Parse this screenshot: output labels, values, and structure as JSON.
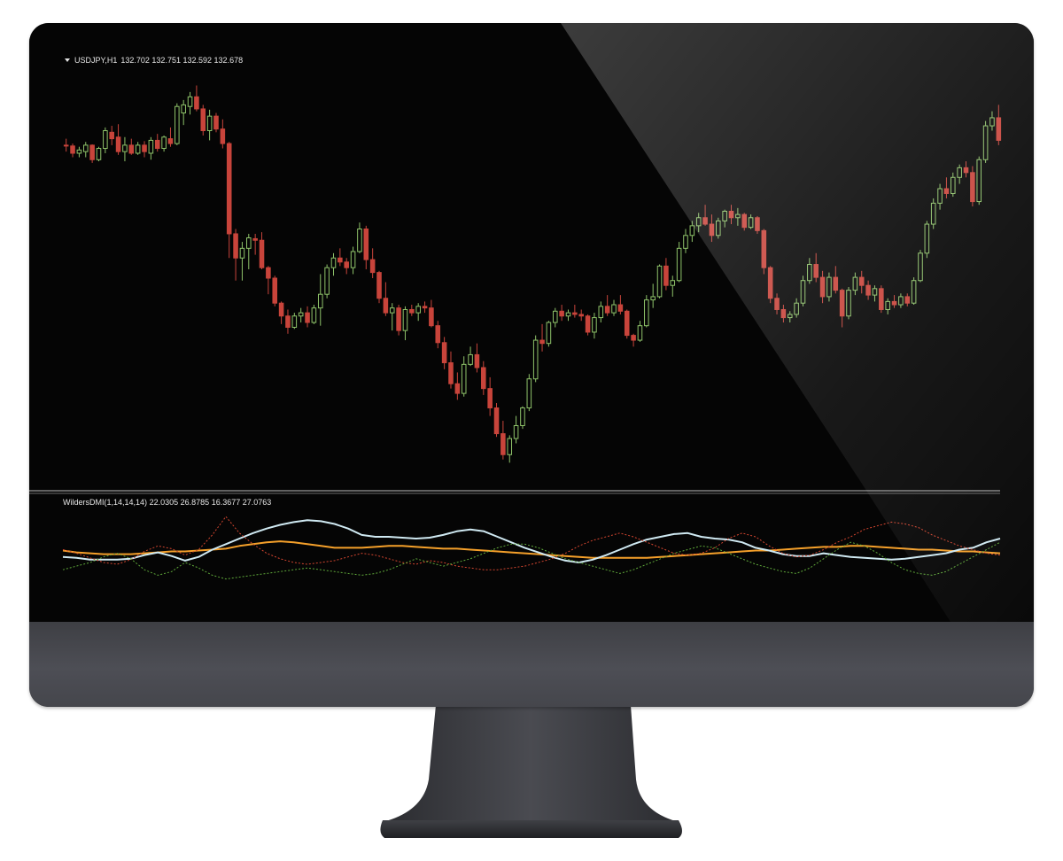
{
  "header": {
    "symbol": "USDJPY,H1",
    "open": "132.702",
    "high": "132.751",
    "low": "132.592",
    "close": "132.678"
  },
  "indicator": {
    "label": "WildersDMI(1,14,14,14)",
    "v1": "22.0305",
    "v2": "26.8785",
    "v3": "16.3677",
    "v4": "27.0763"
  },
  "colors": {
    "background": "#050505",
    "bull_candle": "#8fc36a",
    "bear_candle": "#c8443b",
    "adx_line": "#f5a02a",
    "adxr_line": "#cfe9f2",
    "plus_di": "#5fa83a",
    "minus_di": "#d2452f",
    "separator": "#bfbfbf"
  },
  "chart_data": [
    {
      "type": "candlestick",
      "title": "USDJPY,H1",
      "ohlc": [
        [
          132.7,
          132.78,
          132.62,
          132.69
        ],
        [
          132.69,
          132.72,
          132.55,
          132.6
        ],
        [
          132.6,
          132.68,
          132.55,
          132.64
        ],
        [
          132.62,
          132.74,
          132.55,
          132.7
        ],
        [
          132.7,
          132.71,
          132.48,
          132.52
        ],
        [
          132.52,
          132.68,
          132.5,
          132.66
        ],
        [
          132.66,
          132.92,
          132.6,
          132.88
        ],
        [
          132.86,
          132.94,
          132.7,
          132.78
        ],
        [
          132.8,
          132.96,
          132.58,
          132.62
        ],
        [
          132.62,
          132.8,
          132.5,
          132.7
        ],
        [
          132.7,
          132.78,
          132.58,
          132.6
        ],
        [
          132.6,
          132.74,
          132.58,
          132.7
        ],
        [
          132.7,
          132.75,
          132.55,
          132.62
        ],
        [
          132.6,
          132.8,
          132.52,
          132.76
        ],
        [
          132.76,
          132.84,
          132.62,
          132.66
        ],
        [
          132.66,
          132.82,
          132.62,
          132.8
        ],
        [
          132.78,
          132.92,
          132.68,
          132.72
        ],
        [
          132.72,
          133.22,
          132.7,
          133.18
        ],
        [
          133.1,
          133.26,
          132.95,
          133.2
        ],
        [
          133.18,
          133.36,
          133.08,
          133.3
        ],
        [
          133.3,
          133.44,
          133.12,
          133.15
        ],
        [
          133.15,
          133.2,
          132.82,
          132.88
        ],
        [
          132.88,
          133.14,
          132.76,
          133.06
        ],
        [
          133.06,
          133.1,
          132.86,
          132.9
        ],
        [
          132.9,
          133.02,
          132.66,
          132.72
        ],
        [
          132.72,
          132.74,
          131.3,
          131.6
        ],
        [
          131.6,
          131.66,
          131.02,
          131.3
        ],
        [
          131.3,
          131.5,
          131.02,
          131.42
        ],
        [
          131.42,
          131.6,
          131.16,
          131.55
        ],
        [
          131.54,
          131.6,
          131.34,
          131.52
        ],
        [
          131.52,
          131.62,
          131.16,
          131.18
        ],
        [
          131.18,
          131.2,
          130.85,
          131.05
        ],
        [
          131.05,
          131.08,
          130.7,
          130.74
        ],
        [
          130.74,
          130.76,
          130.48,
          130.58
        ],
        [
          130.58,
          130.66,
          130.36,
          130.44
        ],
        [
          130.44,
          130.62,
          130.42,
          130.58
        ],
        [
          130.58,
          130.68,
          130.5,
          130.62
        ],
        [
          130.62,
          130.7,
          130.44,
          130.5
        ],
        [
          130.5,
          130.72,
          130.48,
          130.68
        ],
        [
          130.68,
          131.1,
          130.46,
          130.85
        ],
        [
          130.85,
          131.22,
          130.8,
          131.18
        ],
        [
          131.18,
          131.36,
          131.08,
          131.3
        ],
        [
          131.3,
          131.42,
          131.2,
          131.25
        ],
        [
          131.25,
          131.3,
          131.1,
          131.18
        ],
        [
          131.18,
          131.44,
          131.1,
          131.38
        ],
        [
          131.38,
          131.74,
          131.36,
          131.66
        ],
        [
          131.66,
          131.7,
          131.16,
          131.28
        ],
        [
          131.28,
          131.42,
          131.05,
          131.12
        ],
        [
          131.12,
          131.14,
          130.74,
          130.8
        ],
        [
          130.8,
          131.0,
          130.58,
          130.62
        ],
        [
          130.62,
          130.74,
          130.4,
          130.68
        ],
        [
          130.68,
          130.72,
          130.34,
          130.4
        ],
        [
          130.4,
          130.7,
          130.28,
          130.66
        ],
        [
          130.66,
          130.72,
          130.58,
          130.62
        ],
        [
          130.62,
          130.74,
          130.52,
          130.7
        ],
        [
          130.7,
          130.76,
          130.62,
          130.68
        ],
        [
          130.68,
          130.78,
          130.44,
          130.46
        ],
        [
          130.46,
          130.52,
          130.18,
          130.25
        ],
        [
          130.25,
          130.32,
          129.92,
          130.0
        ],
        [
          130.0,
          130.14,
          129.68,
          129.74
        ],
        [
          129.74,
          129.88,
          129.54,
          129.62
        ],
        [
          129.62,
          130.08,
          129.58,
          129.98
        ],
        [
          129.98,
          130.2,
          129.96,
          130.1
        ],
        [
          130.1,
          130.24,
          129.88,
          129.94
        ],
        [
          129.94,
          130.02,
          129.6,
          129.68
        ],
        [
          129.68,
          129.82,
          129.34,
          129.44
        ],
        [
          129.44,
          129.5,
          129.08,
          129.12
        ],
        [
          129.12,
          129.28,
          128.8,
          128.86
        ],
        [
          128.86,
          129.1,
          128.76,
          129.06
        ],
        [
          129.06,
          129.34,
          129.0,
          129.22
        ],
        [
          129.22,
          129.46,
          129.18,
          129.44
        ],
        [
          129.44,
          129.86,
          129.4,
          129.8
        ],
        [
          129.8,
          130.34,
          129.76,
          130.28
        ],
        [
          130.28,
          130.48,
          130.14,
          130.24
        ],
        [
          130.24,
          130.52,
          130.2,
          130.5
        ],
        [
          130.5,
          130.68,
          130.44,
          130.64
        ],
        [
          130.64,
          130.72,
          130.52,
          130.58
        ],
        [
          130.58,
          130.66,
          130.52,
          130.62
        ],
        [
          130.62,
          130.72,
          130.56,
          130.6
        ],
        [
          130.6,
          130.66,
          130.52,
          130.58
        ],
        [
          130.58,
          130.6,
          130.34,
          130.38
        ],
        [
          130.38,
          130.62,
          130.3,
          130.56
        ],
        [
          130.56,
          130.76,
          130.5,
          130.7
        ],
        [
          130.7,
          130.84,
          130.58,
          130.62
        ],
        [
          130.62,
          130.78,
          130.58,
          130.72
        ],
        [
          130.72,
          130.84,
          130.6,
          130.64
        ],
        [
          130.64,
          130.66,
          130.3,
          130.34
        ],
        [
          130.34,
          130.36,
          130.2,
          130.28
        ],
        [
          130.28,
          130.52,
          130.26,
          130.46
        ],
        [
          130.46,
          130.84,
          130.44,
          130.78
        ],
        [
          130.78,
          130.98,
          130.68,
          130.82
        ],
        [
          130.82,
          131.22,
          130.8,
          131.2
        ],
        [
          131.2,
          131.3,
          130.9,
          130.96
        ],
        [
          130.96,
          131.08,
          130.82,
          131.02
        ],
        [
          131.02,
          131.5,
          131.0,
          131.42
        ],
        [
          131.42,
          131.66,
          131.36,
          131.58
        ],
        [
          131.58,
          131.76,
          131.5,
          131.7
        ],
        [
          131.7,
          131.86,
          131.62,
          131.8
        ],
        [
          131.8,
          131.96,
          131.7,
          131.72
        ],
        [
          131.72,
          131.84,
          131.5,
          131.58
        ],
        [
          131.58,
          131.8,
          131.54,
          131.76
        ],
        [
          131.76,
          131.9,
          131.68,
          131.88
        ],
        [
          131.88,
          131.96,
          131.72,
          131.8
        ],
        [
          131.8,
          131.92,
          131.7,
          131.84
        ],
        [
          131.84,
          131.86,
          131.64,
          131.68
        ],
        [
          131.68,
          131.84,
          131.66,
          131.8
        ],
        [
          131.8,
          131.82,
          131.6,
          131.64
        ],
        [
          131.64,
          131.66,
          131.1,
          131.18
        ],
        [
          131.18,
          131.2,
          130.74,
          130.8
        ],
        [
          130.8,
          130.86,
          130.6,
          130.66
        ],
        [
          130.66,
          130.72,
          130.5,
          130.56
        ],
        [
          130.56,
          130.64,
          130.5,
          130.6
        ],
        [
          130.6,
          130.8,
          130.56,
          130.74
        ],
        [
          130.74,
          131.08,
          130.7,
          131.02
        ],
        [
          131.02,
          131.3,
          130.98,
          131.22
        ],
        [
          131.22,
          131.36,
          131.0,
          131.06
        ],
        [
          131.06,
          131.14,
          130.74,
          130.82
        ],
        [
          130.82,
          131.12,
          130.76,
          131.06
        ],
        [
          131.06,
          131.2,
          130.86,
          130.9
        ],
        [
          130.9,
          130.92,
          130.44,
          130.58
        ],
        [
          130.58,
          130.94,
          130.54,
          130.9
        ],
        [
          130.9,
          131.12,
          130.84,
          131.06
        ],
        [
          131.06,
          131.14,
          130.86,
          130.96
        ],
        [
          130.96,
          131.02,
          130.78,
          130.84
        ],
        [
          130.84,
          130.96,
          130.76,
          130.92
        ],
        [
          130.92,
          130.96,
          130.62,
          130.66
        ],
        [
          130.66,
          130.8,
          130.6,
          130.76
        ],
        [
          130.76,
          130.84,
          130.68,
          130.72
        ],
        [
          130.72,
          130.86,
          130.68,
          130.82
        ],
        [
          130.82,
          130.86,
          130.7,
          130.74
        ],
        [
          130.74,
          131.06,
          130.72,
          131.02
        ],
        [
          131.02,
          131.4,
          131.0,
          131.36
        ],
        [
          131.36,
          131.76,
          131.3,
          131.72
        ],
        [
          131.72,
          132.04,
          131.66,
          131.98
        ],
        [
          131.98,
          132.22,
          131.9,
          132.16
        ],
        [
          132.16,
          132.3,
          132.04,
          132.1
        ],
        [
          132.1,
          132.36,
          132.06,
          132.3
        ],
        [
          132.3,
          132.46,
          132.22,
          132.42
        ],
        [
          132.42,
          132.5,
          132.3,
          132.36
        ],
        [
          132.36,
          132.44,
          131.94,
          132.0
        ],
        [
          132.0,
          132.56,
          131.96,
          132.52
        ],
        [
          132.52,
          133.0,
          132.48,
          132.94
        ],
        [
          132.94,
          133.12,
          132.88,
          133.04
        ],
        [
          133.04,
          133.2,
          132.7,
          132.76
        ]
      ]
    },
    {
      "type": "line",
      "title": "WildersDMI(1,14,14,14)",
      "series": [
        {
          "values": [
            43,
            41,
            40,
            39,
            39,
            39,
            40,
            41,
            42,
            42,
            43,
            44,
            45,
            48,
            50,
            52,
            53,
            52,
            50,
            48,
            46,
            46,
            46,
            47,
            48,
            48,
            47,
            46,
            45,
            45,
            44,
            43,
            42,
            41,
            40,
            39,
            38,
            37,
            36,
            35,
            35,
            35,
            35,
            35,
            36,
            37,
            38,
            39,
            40,
            41,
            42,
            43,
            43,
            44,
            45,
            46,
            47,
            47,
            48,
            48,
            47,
            46,
            45,
            44,
            44,
            43,
            42,
            42,
            41,
            40
          ]
        },
        {
          "values": [
            36,
            35,
            33,
            33,
            33,
            34,
            38,
            41,
            37,
            32,
            36,
            44,
            50,
            56,
            62,
            67,
            71,
            74,
            76,
            75,
            72,
            67,
            60,
            58,
            58,
            57,
            56,
            57,
            60,
            64,
            66,
            64,
            58,
            52,
            46,
            41,
            36,
            32,
            30,
            33,
            38,
            44,
            50,
            55,
            58,
            61,
            62,
            58,
            56,
            55,
            52,
            46,
            43,
            39,
            37,
            37,
            40,
            38,
            36,
            35,
            34,
            33,
            34,
            36,
            38,
            40,
            44,
            46,
            52,
            56
          ]
        },
        {
          "values": [
            44,
            40,
            35,
            30,
            28,
            33,
            42,
            48,
            45,
            38,
            44,
            60,
            80,
            62,
            50,
            40,
            34,
            30,
            28,
            30,
            32,
            36,
            40,
            38,
            34,
            30,
            28,
            32,
            30,
            26,
            24,
            22,
            22,
            24,
            26,
            30,
            34,
            40,
            48,
            54,
            58,
            62,
            58,
            52,
            46,
            40,
            38,
            40,
            46,
            56,
            62,
            58,
            48,
            40,
            36,
            38,
            44,
            52,
            58,
            66,
            70,
            74,
            72,
            68,
            60,
            54,
            48,
            44,
            40,
            38
          ]
        },
        {
          "values": [
            22,
            26,
            30,
            36,
            40,
            34,
            22,
            16,
            20,
            30,
            24,
            16,
            12,
            14,
            16,
            18,
            20,
            22,
            24,
            22,
            20,
            18,
            16,
            18,
            22,
            28,
            34,
            30,
            26,
            30,
            34,
            40,
            46,
            50,
            50,
            46,
            40,
            34,
            30,
            26,
            22,
            18,
            22,
            28,
            34,
            40,
            44,
            48,
            46,
            40,
            34,
            28,
            24,
            20,
            18,
            24,
            34,
            44,
            52,
            48,
            40,
            30,
            22,
            18,
            16,
            20,
            28,
            36,
            44,
            52
          ]
        }
      ]
    }
  ]
}
